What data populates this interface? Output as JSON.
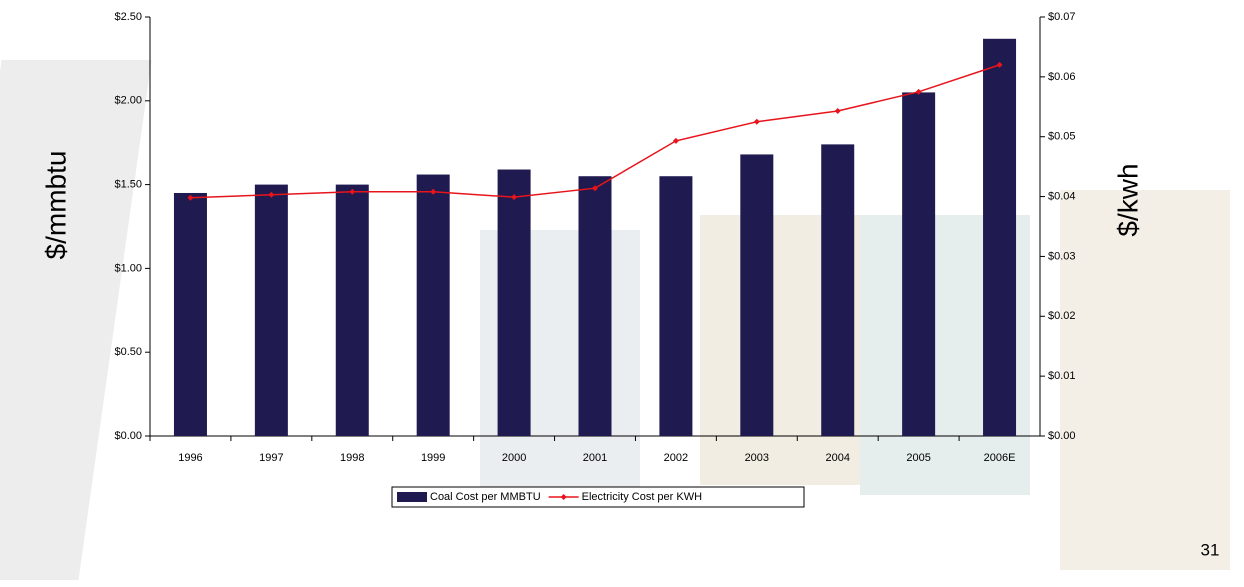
{
  "chart_data": {
    "type": "bar",
    "categories": [
      "1996",
      "1997",
      "1998",
      "1999",
      "2000",
      "2001",
      "2002",
      "2003",
      "2004",
      "2005",
      "2006E"
    ],
    "series": [
      {
        "name": "Coal Cost per MMBTU",
        "type": "bar",
        "color": "#1f1a4f",
        "values": [
          1.45,
          1.5,
          1.5,
          1.56,
          1.59,
          1.55,
          1.55,
          1.68,
          1.74,
          2.05,
          2.37
        ]
      },
      {
        "name": "Electricity Cost per KWH",
        "type": "line",
        "axis": "y2",
        "color": "#e8141b",
        "values": [
          0.0398,
          0.0403,
          0.0408,
          0.0408,
          0.0399,
          0.0414,
          0.0493,
          0.0525,
          0.0543,
          0.0575,
          0.062
        ]
      }
    ],
    "ylabel": "$/mmbtu",
    "y2label": "$/kwh",
    "ylim": [
      0,
      2.5
    ],
    "yticks": [
      {
        "value": 0,
        "label": "$0.00"
      },
      {
        "value": 0.5,
        "label": "$0.50"
      },
      {
        "value": 1,
        "label": "$1.00"
      },
      {
        "value": 1.5,
        "label": "$1.50"
      },
      {
        "value": 2,
        "label": "$2.00"
      },
      {
        "value": 2.5,
        "label": "$2.50"
      }
    ],
    "y2lim": [
      0,
      0.07
    ],
    "y2ticks": [
      {
        "value": 0,
        "label": "$0.00"
      },
      {
        "value": 0.01,
        "label": "$0.01"
      },
      {
        "value": 0.02,
        "label": "$0.02"
      },
      {
        "value": 0.03,
        "label": "$0.03"
      },
      {
        "value": 0.04,
        "label": "$0.04"
      },
      {
        "value": 0.05,
        "label": "$0.05"
      },
      {
        "value": 0.06,
        "label": "$0.06"
      },
      {
        "value": 0.07,
        "label": "$0.07"
      }
    ],
    "grid": false,
    "legend": "bottom"
  },
  "page_number": "31"
}
